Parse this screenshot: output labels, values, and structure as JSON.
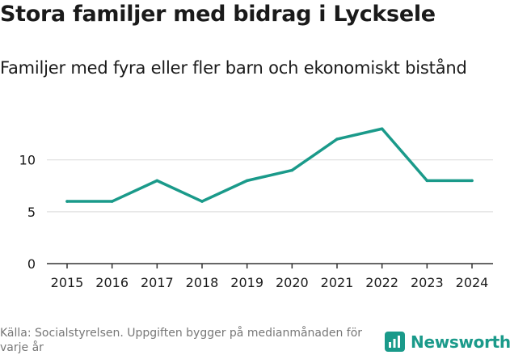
{
  "header": {
    "title": "Stora familjer med bidrag i Lycksele",
    "subtitle": "Familjer med fyra eller fler barn och ekonomiskt bistånd"
  },
  "footer": {
    "source": "Källa: Socialstyrelsen. Uppgiften bygger på medianmånaden för varje år",
    "brand": "Newsworthy"
  },
  "colors": {
    "line": "#1a9a8a",
    "grid": "#d9d9d9",
    "axis": "#333333",
    "text": "#1a1a1a"
  },
  "chart_data": {
    "type": "line",
    "title": "Stora familjer med bidrag i Lycksele",
    "subtitle": "Familjer med fyra eller fler barn och ekonomiskt bistånd",
    "xlabel": "",
    "ylabel": "",
    "categories": [
      "2015",
      "2016",
      "2017",
      "2018",
      "2019",
      "2020",
      "2021",
      "2022",
      "2023",
      "2024"
    ],
    "series": [
      {
        "name": "Familjer",
        "values": [
          6,
          6,
          8,
          6,
          8,
          9,
          12,
          13,
          8,
          8
        ]
      }
    ],
    "ylim": [
      0,
      14.5
    ],
    "yticks": [
      0,
      5,
      10
    ],
    "grid": true,
    "legend": "none"
  }
}
